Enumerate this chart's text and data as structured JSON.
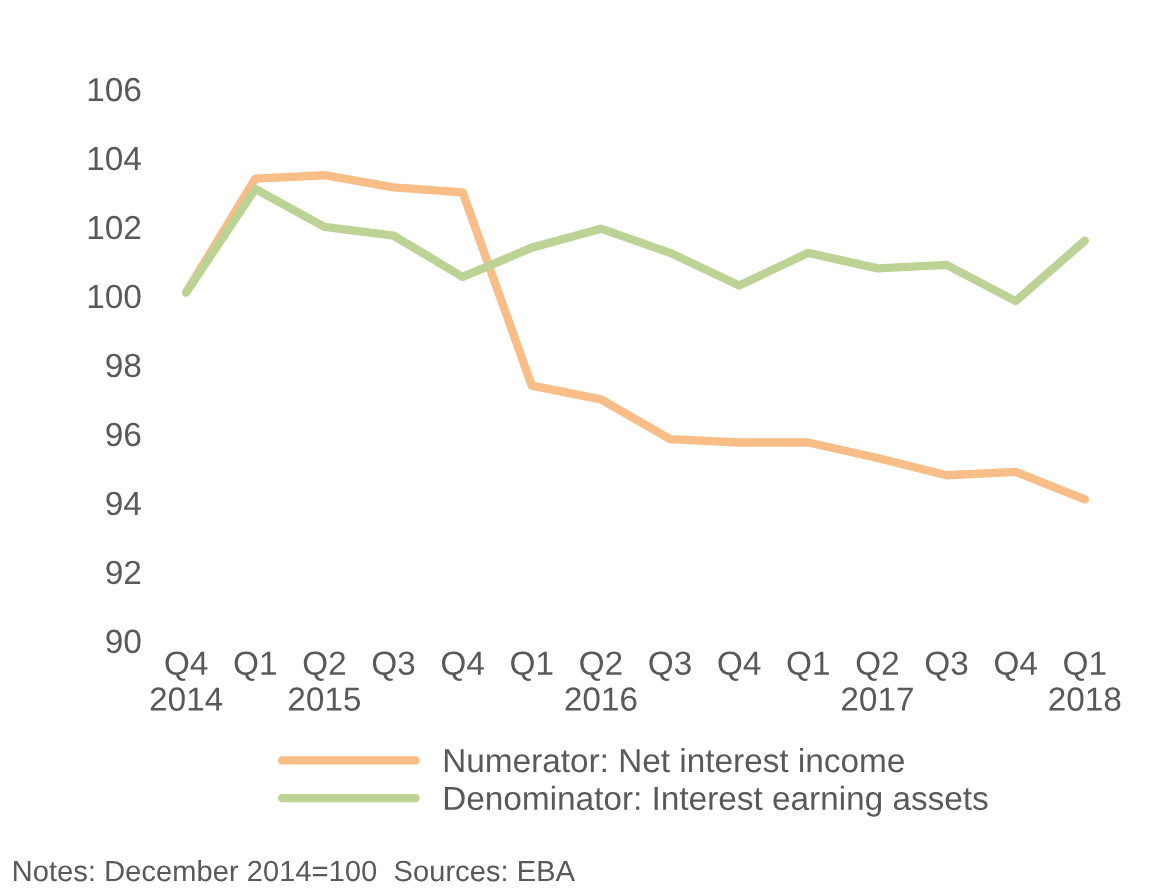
{
  "chart_data": {
    "type": "line",
    "categories": [
      "Q4\n2014",
      "Q1",
      "Q2\n2015",
      "Q3",
      "Q4",
      "Q1",
      "Q2\n2016",
      "Q3",
      "Q4",
      "Q1",
      "Q2\n2017",
      "Q3",
      "Q4",
      "Q1\n2018"
    ],
    "series": [
      {
        "name": "Numerator: Net interest income",
        "color": "#f9bd88",
        "values": [
          100.1,
          103.4,
          103.5,
          103.15,
          103.0,
          97.4,
          97.0,
          95.85,
          95.75,
          95.75,
          95.3,
          94.8,
          94.9,
          94.1
        ]
      },
      {
        "name": "Denominator: Interest earning assets",
        "color": "#bdd396",
        "values": [
          100.1,
          103.1,
          102.0,
          101.75,
          100.55,
          101.4,
          101.95,
          101.25,
          100.3,
          101.25,
          100.8,
          100.9,
          99.85,
          101.6
        ]
      }
    ],
    "ylim": [
      90,
      106
    ],
    "yticks": [
      90,
      92,
      94,
      96,
      98,
      100,
      102,
      104,
      106
    ],
    "grid": false,
    "legend": "bottom",
    "marker": "none",
    "line_style": "solid",
    "annotations": [
      "Notes: December 2014=100  Sources: EBA"
    ]
  }
}
